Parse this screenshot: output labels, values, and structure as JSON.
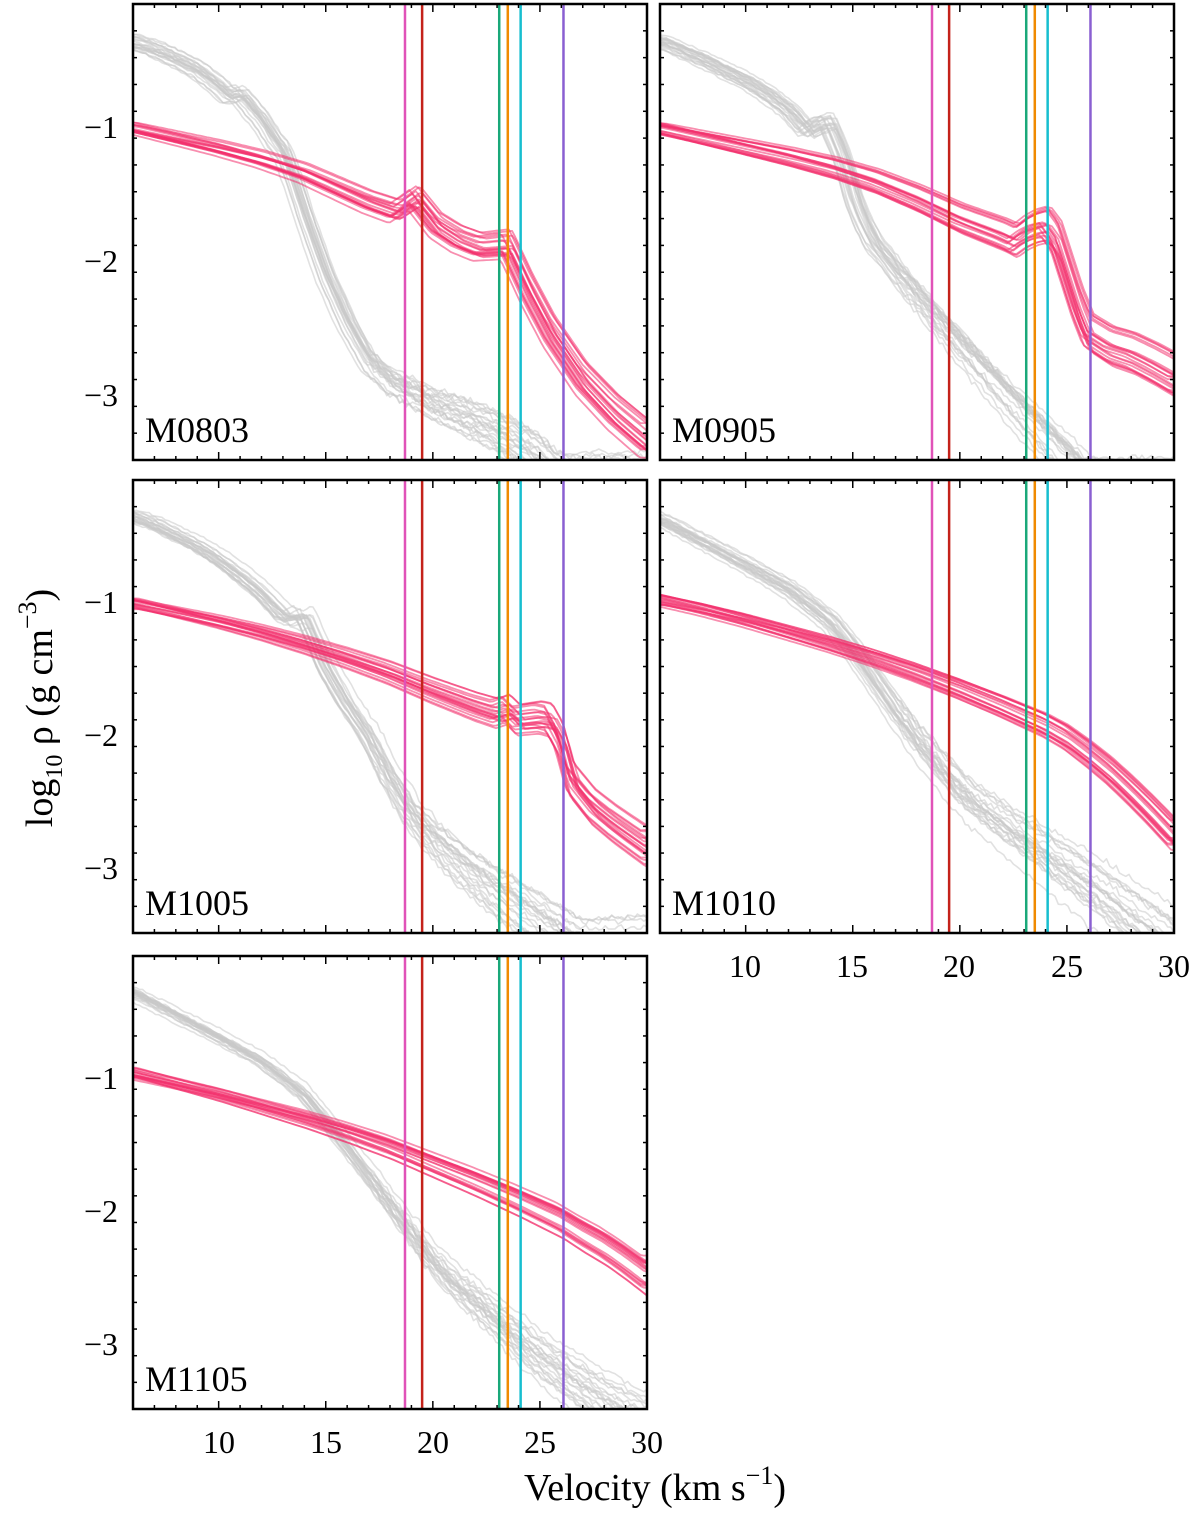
{
  "chart_data": {
    "type": "line",
    "xlabel": "Velocity (km s",
    "xlabel_sup": "−1",
    "xlabel_close": ")",
    "ylabel_pre": "log",
    "ylabel_sub": "10",
    "ylabel_mid": " ρ (g cm",
    "ylabel_sup": "−3",
    "ylabel_close": ")",
    "xlim": [
      6,
      30
    ],
    "ylim": [
      -3.5,
      -0.1
    ],
    "x_ticks": [
      10,
      15,
      20,
      25,
      30
    ],
    "x_tick_labels": [
      "10",
      "15",
      "20",
      "25",
      "30"
    ],
    "y_ticks": [
      -1,
      -2,
      -3
    ],
    "y_tick_labels": [
      "−1",
      "−2",
      "−3"
    ],
    "vertical_lines": [
      {
        "x": 18.7,
        "color": "#e052b8"
      },
      {
        "x": 19.5,
        "color": "#c4221a"
      },
      {
        "x": 23.1,
        "color": "#1aa879"
      },
      {
        "x": 23.5,
        "color": "#f08a00"
      },
      {
        "x": 24.1,
        "color": "#17becf"
      },
      {
        "x": 26.1,
        "color": "#8a5fd1"
      }
    ],
    "colors": {
      "model": "#f2326e",
      "reference": "#c8c8c8"
    },
    "panels": [
      {
        "label": "M0803",
        "model_series": {
          "name": "model",
          "x": [
            6,
            8,
            10,
            12,
            14,
            16,
            17,
            18.3,
            19.2,
            20.2,
            21.2,
            22.2,
            23.5,
            24.5,
            25.5,
            27,
            28.5,
            30
          ],
          "values": [
            -1.02,
            -1.09,
            -1.16,
            -1.24,
            -1.34,
            -1.48,
            -1.55,
            -1.62,
            -1.52,
            -1.72,
            -1.82,
            -1.88,
            -1.86,
            -2.2,
            -2.5,
            -2.85,
            -3.1,
            -3.3
          ]
        },
        "reference_series": {
          "name": "reference",
          "x": [
            6,
            7,
            8,
            9,
            10,
            10.5,
            11,
            11.5,
            12,
            12.5,
            13,
            13.5,
            14,
            15,
            16,
            17,
            18,
            19,
            20,
            21,
            22,
            23,
            24,
            25,
            26
          ],
          "values": [
            -0.38,
            -0.43,
            -0.5,
            -0.58,
            -0.7,
            -0.78,
            -0.76,
            -0.86,
            -0.95,
            -1.08,
            -1.18,
            -1.4,
            -1.65,
            -2.1,
            -2.45,
            -2.72,
            -2.86,
            -2.93,
            -3.0,
            -3.05,
            -3.1,
            -3.16,
            -3.24,
            -3.34,
            -3.48
          ]
        }
      },
      {
        "label": "M0905",
        "model_series": {
          "name": "model",
          "x": [
            6,
            8,
            10,
            12,
            14,
            16,
            18,
            20,
            21,
            22,
            22.5,
            23,
            23.5,
            24,
            24.5,
            25,
            25.5,
            26,
            27,
            28,
            29,
            30
          ],
          "values": [
            -1.03,
            -1.1,
            -1.17,
            -1.24,
            -1.32,
            -1.42,
            -1.55,
            -1.7,
            -1.76,
            -1.82,
            -1.86,
            -1.8,
            -1.76,
            -1.74,
            -1.85,
            -2.1,
            -2.35,
            -2.55,
            -2.65,
            -2.7,
            -2.78,
            -2.87
          ]
        },
        "reference_series": {
          "name": "reference",
          "x": [
            6,
            7,
            8,
            9,
            10,
            11,
            12,
            12.8,
            13.3,
            13.8,
            14.5,
            15,
            15.5,
            16,
            16.5,
            17,
            18,
            19,
            20,
            21,
            22,
            23,
            24,
            25,
            26
          ],
          "values": [
            -0.38,
            -0.45,
            -0.52,
            -0.6,
            -0.68,
            -0.78,
            -0.9,
            -1.05,
            -1.0,
            -0.98,
            -1.25,
            -1.55,
            -1.75,
            -1.9,
            -1.98,
            -2.08,
            -2.25,
            -2.42,
            -2.58,
            -2.74,
            -2.9,
            -3.05,
            -3.2,
            -3.35,
            -3.5
          ]
        }
      },
      {
        "label": "M1005",
        "model_series": {
          "name": "model",
          "x": [
            6,
            8,
            10,
            12,
            14,
            16,
            18,
            20,
            22,
            23,
            23.5,
            24,
            25,
            25.5,
            26,
            26.5,
            27.5,
            28.5,
            30
          ],
          "values": [
            -1.03,
            -1.1,
            -1.17,
            -1.25,
            -1.34,
            -1.44,
            -1.55,
            -1.68,
            -1.8,
            -1.85,
            -1.82,
            -1.9,
            -1.88,
            -1.9,
            -2.05,
            -2.35,
            -2.55,
            -2.68,
            -2.85
          ]
        },
        "reference_series": {
          "name": "reference",
          "x": [
            6,
            7,
            8,
            9,
            10,
            11,
            12,
            13,
            13.5,
            14,
            14.5,
            15,
            16,
            17,
            18,
            19,
            20,
            21,
            22,
            23,
            24,
            25,
            26,
            27
          ],
          "values": [
            -0.38,
            -0.44,
            -0.52,
            -0.6,
            -0.7,
            -0.82,
            -0.95,
            -1.12,
            -1.15,
            -1.12,
            -1.3,
            -1.5,
            -1.78,
            -2.0,
            -2.3,
            -2.55,
            -2.72,
            -2.85,
            -2.97,
            -3.08,
            -3.18,
            -3.28,
            -3.38,
            -3.48
          ]
        }
      },
      {
        "label": "M1010",
        "model_series": {
          "name": "model",
          "x": [
            6,
            8,
            10,
            12,
            14,
            16,
            18,
            20,
            22,
            23,
            24,
            25,
            26,
            27,
            28,
            29,
            30
          ],
          "values": [
            -1.0,
            -1.07,
            -1.15,
            -1.24,
            -1.33,
            -1.43,
            -1.54,
            -1.66,
            -1.79,
            -1.86,
            -1.93,
            -2.02,
            -2.14,
            -2.27,
            -2.42,
            -2.58,
            -2.75
          ]
        },
        "reference_series": {
          "name": "reference",
          "x": [
            6,
            8,
            10,
            12,
            14,
            15,
            16,
            17,
            18,
            19,
            20,
            21,
            22,
            23,
            24,
            25,
            26,
            27,
            28,
            29,
            30
          ],
          "values": [
            -0.38,
            -0.55,
            -0.72,
            -0.9,
            -1.15,
            -1.35,
            -1.58,
            -1.8,
            -2.0,
            -2.18,
            -2.35,
            -2.48,
            -2.58,
            -2.68,
            -2.78,
            -2.88,
            -2.98,
            -3.08,
            -3.2,
            -3.3,
            -3.42
          ]
        }
      },
      {
        "label": "M1105",
        "model_series": {
          "name": "model",
          "x": [
            6,
            8,
            10,
            12,
            14,
            16,
            18,
            20,
            22,
            24,
            26,
            27,
            28,
            29,
            30
          ],
          "values": [
            -0.98,
            -1.06,
            -1.14,
            -1.23,
            -1.32,
            -1.42,
            -1.53,
            -1.66,
            -1.79,
            -1.93,
            -2.08,
            -2.18,
            -2.27,
            -2.38,
            -2.5
          ]
        },
        "reference_series": {
          "name": "reference",
          "x": [
            6,
            8,
            10,
            12,
            14,
            15,
            16,
            17,
            18,
            19,
            20,
            21,
            22,
            23,
            24,
            25,
            26,
            27,
            28,
            29,
            30
          ],
          "values": [
            -0.38,
            -0.55,
            -0.72,
            -0.9,
            -1.15,
            -1.35,
            -1.55,
            -1.75,
            -1.95,
            -2.15,
            -2.35,
            -2.5,
            -2.62,
            -2.75,
            -2.88,
            -3.0,
            -3.1,
            -3.2,
            -3.3,
            -3.38,
            -3.45
          ]
        }
      }
    ]
  }
}
